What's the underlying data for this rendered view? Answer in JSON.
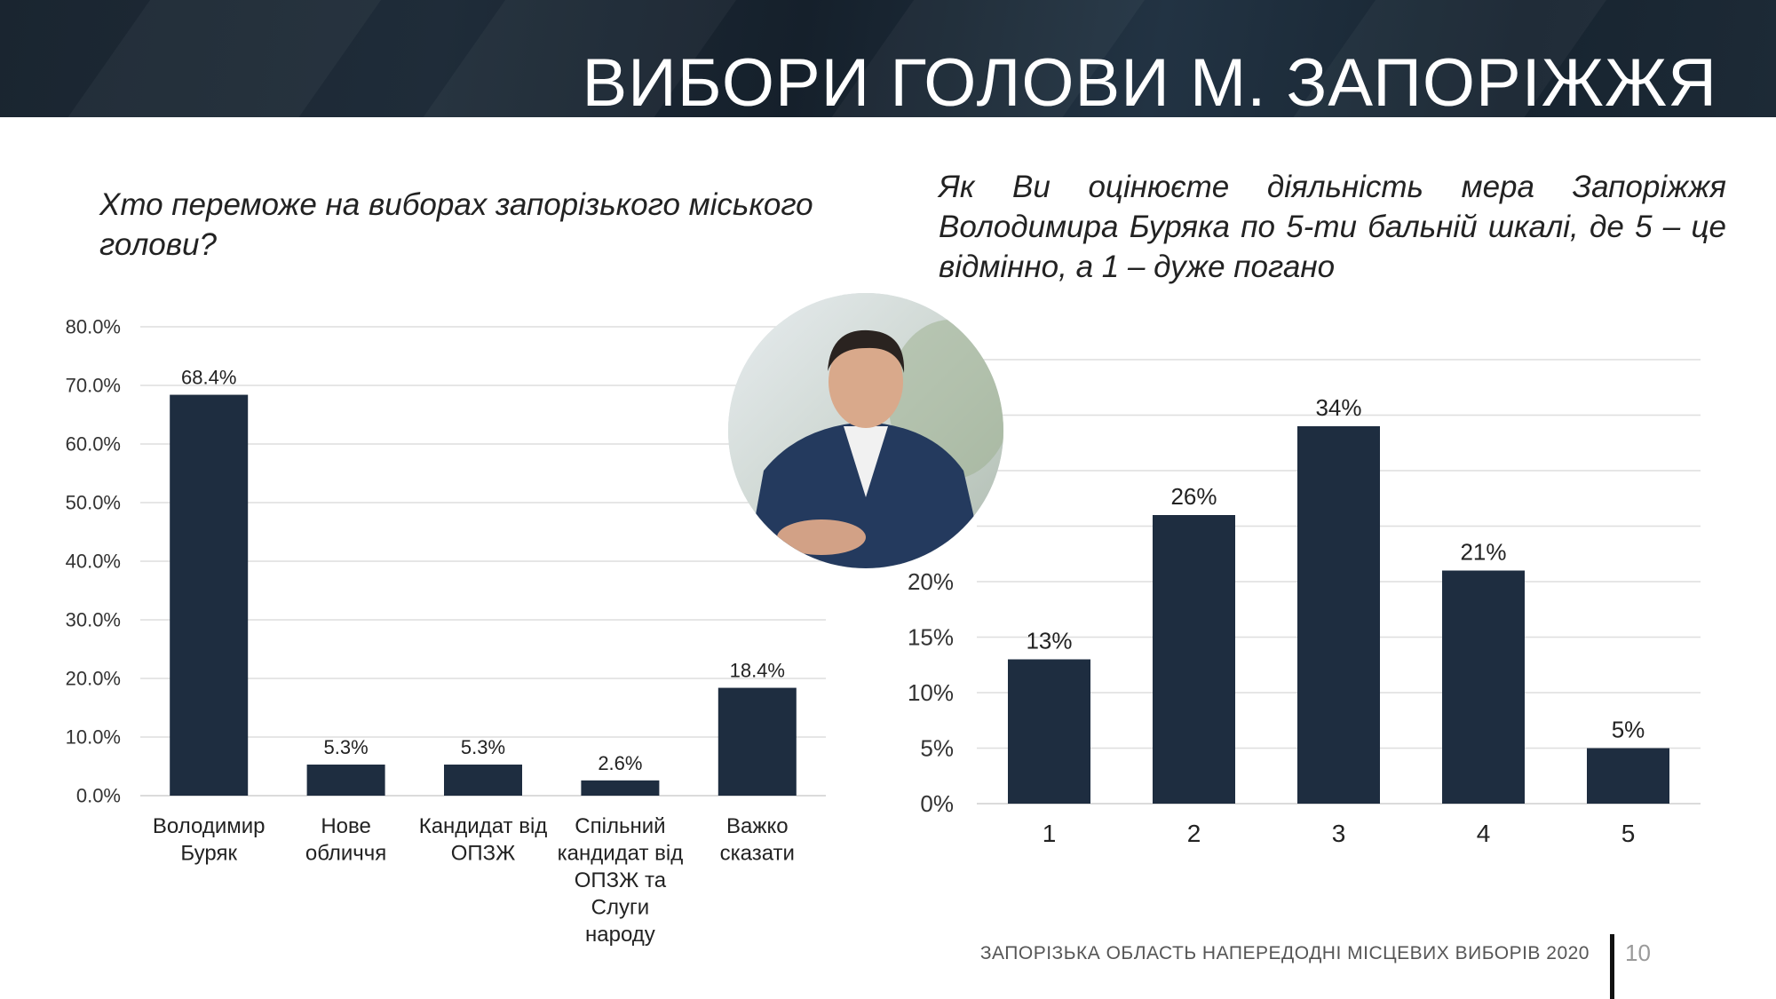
{
  "header": {
    "title": "ВИБОРИ ГОЛОВИ М. ЗАПОРІЖЖЯ"
  },
  "questions": {
    "left": "Хто переможе на виборах запорізького міського голови?",
    "right_line1": "Як Ви оцінюєте діяльність мера Запоріжжя",
    "right_line2": "Володимира Буряка по 5-ти бальній шкалі, де 5 – це",
    "right_line3": "відмінно, а 1 – дуже погано"
  },
  "photo": {
    "subject": "person-portrait"
  },
  "chart_data": [
    {
      "type": "bar",
      "categories": [
        [
          "Володимир",
          "Буряк"
        ],
        [
          "Нове",
          "обличчя"
        ],
        [
          "Кандидат від",
          "ОПЗЖ"
        ],
        [
          "Спільний",
          "кандидат від",
          "ОПЗЖ та",
          "Слуги",
          "народу"
        ],
        [
          "Важко",
          "сказати"
        ]
      ],
      "values": [
        68.4,
        5.3,
        5.3,
        2.6,
        18.4
      ],
      "value_labels": [
        "68.4%",
        "5.3%",
        "5.3%",
        "2.6%",
        "18.4%"
      ],
      "ylim": [
        0,
        80
      ],
      "yticks": [
        "0.0%",
        "10.0%",
        "20.0%",
        "30.0%",
        "40.0%",
        "50.0%",
        "60.0%",
        "70.0%",
        "80.0%"
      ],
      "grid": true,
      "bar_color": "#1e2d40"
    },
    {
      "type": "bar",
      "categories": [
        "1",
        "2",
        "3",
        "4",
        "5"
      ],
      "values": [
        13,
        26,
        34,
        21,
        5
      ],
      "value_labels": [
        "13%",
        "26%",
        "34%",
        "21%",
        "5%"
      ],
      "ylim": [
        0,
        40
      ],
      "yticks": [
        "0%",
        "5%",
        "10%",
        "15%",
        "20%",
        "",
        "",
        "",
        ""
      ],
      "grid": true,
      "bar_color": "#1e2d40"
    }
  ],
  "footer": {
    "text": "ЗАПОРІЗЬКА ОБЛАСТЬ НАПЕРЕДОДНІ МІСЦЕВИХ ВИБОРІВ 2020",
    "page_number": "10"
  }
}
